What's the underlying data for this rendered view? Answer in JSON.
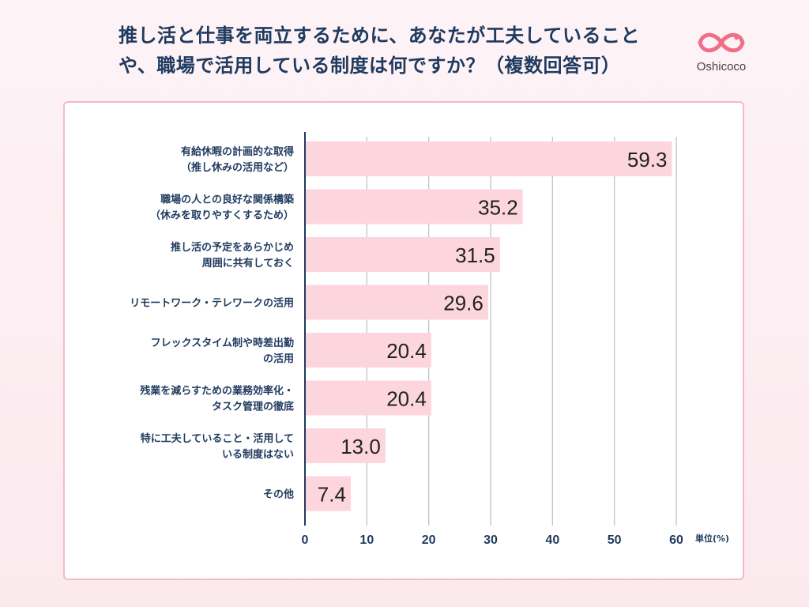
{
  "title_lines": [
    "推し活と仕事を両立するために、あなたが工夫していること",
    "や、職場で活用している制度は何ですか？（複数回答可）"
  ],
  "logo": {
    "text": "Oshicoco",
    "icon": "infinity-heart-icon"
  },
  "colors": {
    "bar": "#fcd6dc",
    "axis": "#1f3a5f",
    "grid": "#bfbfbf",
    "title": "#1f3a5f",
    "card_border": "#f6b9c6",
    "logo": "#ee6f86"
  },
  "chart_data": {
    "type": "bar",
    "orientation": "horizontal",
    "categories": [
      [
        "有給休暇の計画的な取得",
        "（推し休みの活用など）"
      ],
      [
        "職場の人との良好な関係構築",
        "（休みを取りやすくするため）"
      ],
      [
        "推し活の予定をあらかじめ",
        "周囲に共有しておく"
      ],
      [
        "リモートワーク・テレワークの活用"
      ],
      [
        "フレックスタイム制や時差出勤",
        "の活用"
      ],
      [
        "残業を減らすための業務効率化・",
        "タスク管理の徹底"
      ],
      [
        "特に工夫していること・活用して",
        "いる制度はない"
      ],
      [
        "その他"
      ]
    ],
    "values": [
      59.3,
      35.2,
      31.5,
      29.6,
      20.4,
      20.4,
      13.0,
      7.4
    ],
    "value_labels": [
      "59.3",
      "35.2",
      "31.5",
      "29.6",
      "20.4",
      "20.4",
      "13.0",
      "7.4"
    ],
    "xticks": [
      "0",
      "10",
      "20",
      "30",
      "40",
      "50",
      "60"
    ],
    "xlim": [
      0,
      60
    ],
    "unit_label": "単位(%)",
    "grid": true
  }
}
